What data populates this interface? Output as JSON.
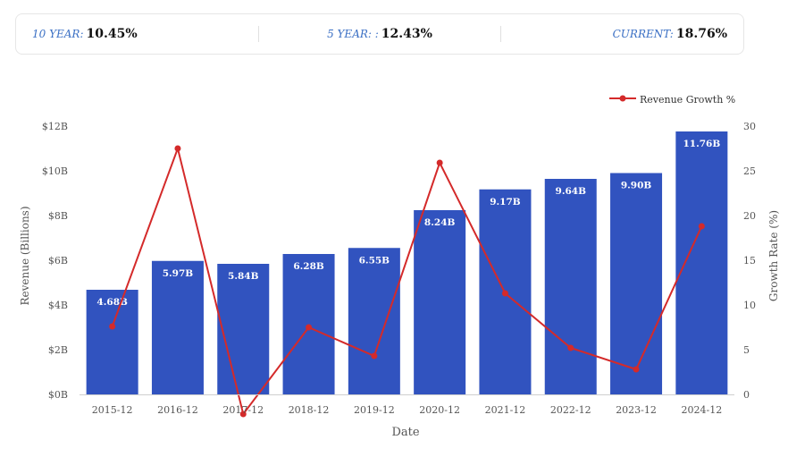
{
  "stats": [
    {
      "label": "10 YEAR:",
      "value": "10.45%"
    },
    {
      "label": "5 YEAR: :",
      "value": "12.43%"
    },
    {
      "label": "CURRENT:",
      "value": "18.76%"
    }
  ],
  "chart_data": {
    "type": "bar",
    "xlabel": "Date",
    "ylabel": "Revenue (Billions)",
    "y2label": "Growth Rate (%)",
    "categories": [
      "2015-12",
      "2016-12",
      "2017-12",
      "2018-12",
      "2019-12",
      "2020-12",
      "2021-12",
      "2022-12",
      "2023-12",
      "2024-12"
    ],
    "ylim": [
      0,
      12
    ],
    "y_ticks": [
      "$0B",
      "$2B",
      "$4B",
      "$6B",
      "$8B",
      "$10B",
      "$12B"
    ],
    "y2lim": [
      0,
      30
    ],
    "y2_ticks": [
      "0",
      "5",
      "10",
      "15",
      "20",
      "25",
      "30"
    ],
    "legend_position": "top-right",
    "series": [
      {
        "type": "bar",
        "values": [
          4.68,
          5.97,
          5.84,
          6.28,
          6.55,
          8.24,
          9.17,
          9.64,
          9.9,
          11.76
        ],
        "labels": [
          "4.68B",
          "5.97B",
          "5.84B",
          "6.28B",
          "6.55B",
          "8.24B",
          "9.17B",
          "9.64B",
          "9.90B",
          "11.76B"
        ],
        "color": "#3153bf"
      },
      {
        "type": "line",
        "name": "Revenue Growth %",
        "axis": "right",
        "values": [
          7.6,
          27.5,
          -2.2,
          7.5,
          4.3,
          25.9,
          11.3,
          5.2,
          2.8,
          18.8
        ],
        "color": "#d42a2a"
      }
    ]
  }
}
